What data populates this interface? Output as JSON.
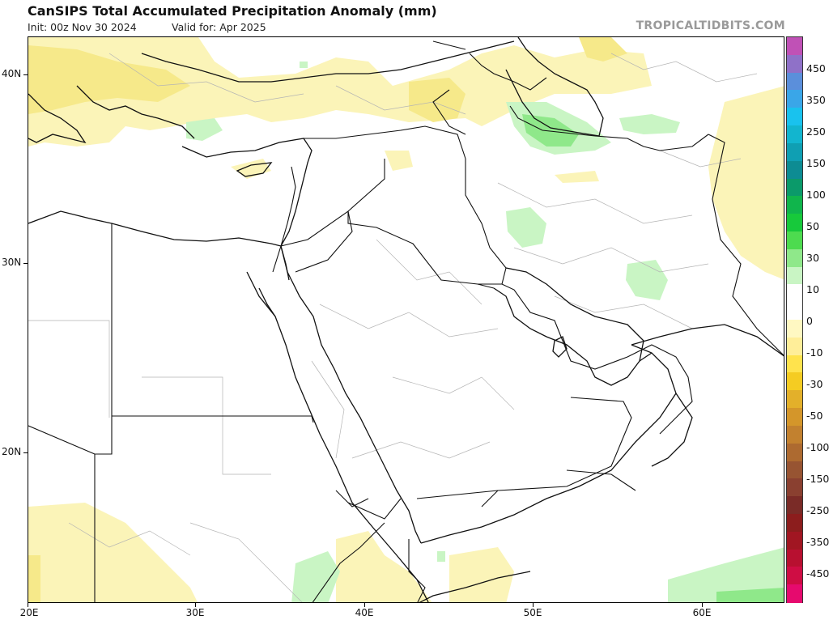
{
  "header": {
    "title": "CanSIPS Total Accumulated Precipitation Anomaly (mm)",
    "init": "Init: 00z Nov 30 2024",
    "valid": "Valid for: Apr 2025",
    "source": "TROPICALTIDBITS.COM"
  },
  "map": {
    "latitude_labels": [
      "40N",
      "30N",
      "20N"
    ],
    "longitude_labels": [
      "20E",
      "30E",
      "40E",
      "50E",
      "60E"
    ]
  },
  "colorbar": {
    "labels": [
      "450",
      "350",
      "250",
      "150",
      "100",
      "50",
      "30",
      "10",
      "0",
      "-10",
      "-30",
      "-50",
      "-100",
      "-150",
      "-250",
      "-350",
      "-450"
    ],
    "colors": [
      "#c051b6",
      "#8f71c8",
      "#5b8fdb",
      "#3aa6e8",
      "#19c2ee",
      "#12b5cf",
      "#0f9fb3",
      "#0d8c93",
      "#0b9a6a",
      "#10b54c",
      "#17c93b",
      "#4ddb4f",
      "#8fe88a",
      "#c9f5c4",
      "#ffffff",
      "#ffffff",
      "#fff8c2",
      "#ffee99",
      "#ffe34d",
      "#f5cc22",
      "#e3b02a",
      "#d4962a",
      "#c2812f",
      "#ad6a30",
      "#975432",
      "#8a4030",
      "#7a2b27",
      "#8c1d1d",
      "#a11622",
      "#b81030",
      "#cf0d44",
      "#e60a6e"
    ]
  }
}
